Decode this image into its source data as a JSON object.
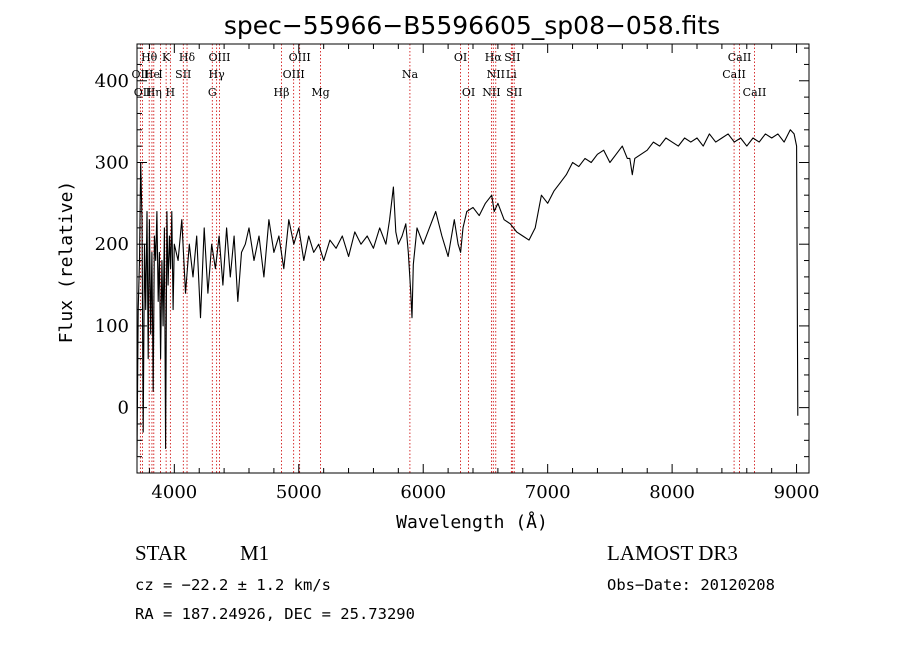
{
  "chart_data": {
    "type": "line",
    "title": "spec−55966−B5596605_sp08−058.fits",
    "xlabel": "Wavelength (Å)",
    "ylabel": "Flux (relative)",
    "xlim": [
      3700,
      9100
    ],
    "ylim": [
      -80,
      445
    ],
    "x_ticks": [
      4000,
      5000,
      6000,
      7000,
      8000,
      9000
    ],
    "y_ticks": [
      0,
      100,
      200,
      300,
      400
    ],
    "series": [
      {
        "name": "flux",
        "x": [
          3700,
          3710,
          3720,
          3730,
          3740,
          3750,
          3760,
          3770,
          3780,
          3790,
          3800,
          3810,
          3820,
          3830,
          3840,
          3850,
          3860,
          3870,
          3880,
          3890,
          3900,
          3910,
          3920,
          3930,
          3940,
          3950,
          3960,
          3970,
          3980,
          3990,
          4000,
          4030,
          4060,
          4090,
          4120,
          4150,
          4180,
          4210,
          4240,
          4270,
          4300,
          4330,
          4360,
          4390,
          4420,
          4450,
          4480,
          4510,
          4540,
          4570,
          4600,
          4640,
          4680,
          4720,
          4760,
          4800,
          4840,
          4880,
          4920,
          4960,
          5000,
          5040,
          5080,
          5120,
          5160,
          5200,
          5250,
          5300,
          5350,
          5400,
          5450,
          5500,
          5550,
          5600,
          5650,
          5700,
          5730,
          5760,
          5780,
          5800,
          5830,
          5860,
          5880,
          5900,
          5910,
          5920,
          5950,
          6000,
          6050,
          6100,
          6150,
          6200,
          6250,
          6280,
          6300,
          6320,
          6350,
          6400,
          6450,
          6500,
          6550,
          6570,
          6600,
          6650,
          6700,
          6750,
          6800,
          6850,
          6900,
          6950,
          7000,
          7050,
          7100,
          7150,
          7200,
          7250,
          7300,
          7350,
          7400,
          7450,
          7500,
          7550,
          7600,
          7640,
          7660,
          7680,
          7700,
          7750,
          7800,
          7850,
          7900,
          7950,
          8000,
          8050,
          8100,
          8150,
          8200,
          8250,
          8300,
          8350,
          8400,
          8450,
          8500,
          8550,
          8600,
          8650,
          8700,
          8750,
          8800,
          8850,
          8900,
          8950,
          8980,
          9000,
          9010
        ],
        "y": [
          -60,
          120,
          180,
          300,
          230,
          -30,
          200,
          120,
          240,
          60,
          230,
          90,
          190,
          20,
          210,
          180,
          240,
          130,
          190,
          60,
          180,
          100,
          220,
          -50,
          240,
          150,
          210,
          170,
          240,
          120,
          200,
          180,
          230,
          140,
          200,
          160,
          210,
          110,
          220,
          140,
          200,
          170,
          210,
          150,
          220,
          160,
          210,
          130,
          190,
          200,
          220,
          180,
          210,
          160,
          230,
          190,
          210,
          170,
          230,
          200,
          220,
          180,
          210,
          190,
          200,
          180,
          205,
          195,
          210,
          185,
          215,
          200,
          210,
          195,
          220,
          200,
          230,
          270,
          215,
          200,
          210,
          225,
          190,
          140,
          110,
          175,
          220,
          200,
          220,
          240,
          210,
          185,
          230,
          200,
          190,
          220,
          240,
          245,
          235,
          250,
          260,
          240,
          250,
          230,
          225,
          215,
          210,
          205,
          220,
          260,
          250,
          265,
          275,
          285,
          300,
          295,
          305,
          300,
          310,
          315,
          300,
          310,
          320,
          305,
          305,
          285,
          305,
          310,
          315,
          325,
          320,
          330,
          325,
          320,
          330,
          325,
          330,
          320,
          335,
          325,
          330,
          335,
          325,
          330,
          320,
          330,
          325,
          335,
          330,
          335,
          325,
          340,
          335,
          320,
          -10
        ]
      }
    ],
    "emission_lines": [
      {
        "label": "Hθ",
        "x": 3798,
        "row": 1
      },
      {
        "label": "K",
        "x": 3934,
        "row": 1
      },
      {
        "label": "Hδ",
        "x": 4102,
        "row": 1
      },
      {
        "label": "OIII",
        "x": 4363,
        "row": 1
      },
      {
        "label": "OIII",
        "x": 5007,
        "row": 1
      },
      {
        "label": "OI",
        "x": 6300,
        "row": 1
      },
      {
        "label": "Hα",
        "x": 6563,
        "row": 1
      },
      {
        "label": "SII",
        "x": 6716,
        "row": 1
      },
      {
        "label": "CaII",
        "x": 8542,
        "row": 1
      },
      {
        "label": "OII",
        "x": 3727,
        "row": 2
      },
      {
        "label": "He",
        "x": 3820,
        "row": 2
      },
      {
        "label": "I",
        "x": 3889,
        "row": 2
      },
      {
        "label": "SII",
        "x": 4072,
        "row": 2
      },
      {
        "label": "Hγ",
        "x": 4340,
        "row": 2
      },
      {
        "label": "OIII",
        "x": 4959,
        "row": 2
      },
      {
        "label": "Na",
        "x": 5893,
        "row": 2
      },
      {
        "label": "NII",
        "x": 6583,
        "row": 2
      },
      {
        "label": "Li",
        "x": 6708,
        "row": 2
      },
      {
        "label": "CaII",
        "x": 8498,
        "row": 2
      },
      {
        "label": "OII",
        "x": 3745,
        "row": 3
      },
      {
        "label": "Hη",
        "x": 3835,
        "row": 3
      },
      {
        "label": "H",
        "x": 3968,
        "row": 3
      },
      {
        "label": "G",
        "x": 4305,
        "row": 3
      },
      {
        "label": "Hβ",
        "x": 4861,
        "row": 3
      },
      {
        "label": "Mg",
        "x": 5175,
        "row": 3
      },
      {
        "label": "OI",
        "x": 6364,
        "row": 3
      },
      {
        "label": "NII",
        "x": 6548,
        "row": 3
      },
      {
        "label": "SII",
        "x": 6731,
        "row": 3
      },
      {
        "label": "CaII",
        "x": 8662,
        "row": 3
      }
    ]
  },
  "info": {
    "class": "STAR",
    "subclass": "M1",
    "survey": "LAMOST DR3",
    "cz": "cz = −22.2 ± 1.2 km/s",
    "obs_date": "Obs−Date: 20120208",
    "coords": "RA = 187.24926, DEC =  25.73290"
  },
  "colors": {
    "spectrum": "#000000",
    "emission_line": "#cc0000",
    "axes": "#000000",
    "background": "#ffffff"
  }
}
